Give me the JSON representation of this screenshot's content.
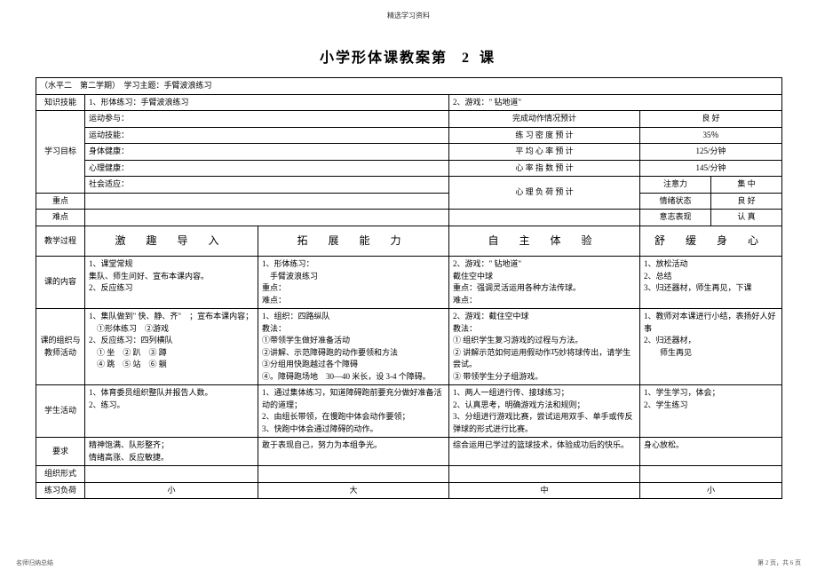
{
  "header_small": "精选学习资料",
  "title_main": "小学形体课教案第",
  "title_num": "2 课",
  "subtitle": "（水平二　第二学期）　学习主题：手臂波浪练习",
  "row_knowledge": {
    "label": "知识技能",
    "c1": "1、形体练习：手臂波浪练习",
    "c2": "2、游戏：\" 钻地道\""
  },
  "goals_label": "学习目标",
  "goals": [
    {
      "l": "运动参与：",
      "m": "完成动作情况预计",
      "r": "良 好"
    },
    {
      "l": "运动技能：",
      "m": "练 习 密 度 预 计",
      "r": "35％"
    },
    {
      "l": "身体健康：",
      "m": "平 均 心 率 预 计",
      "r": "125/分钟"
    },
    {
      "l": "心理健康：",
      "m": "心 率 指 数 预 计",
      "r": "145/分钟"
    },
    {
      "l": "社会适应：",
      "m": "",
      "r": "注意力",
      "r2": "集 中"
    }
  ],
  "zhongdian": {
    "label": "重点",
    "m": "心 理 负 荷 预 计",
    "r": "情绪状态",
    "r2": "良 好"
  },
  "nandian": {
    "label": "难点",
    "r": "意志表现",
    "r2": "认 真"
  },
  "process_label": "教学过程",
  "stages": [
    "激 趣 导 入",
    "拓 展 能 力",
    "自 主 体 验",
    "舒 缓 身 心"
  ],
  "content_label": "课的内容",
  "content": [
    "1、课堂常规\n集队、师生问好、宣布本课内容。\n2、反应练习",
    "1、形体练习：\n　手臂波浪练习\n重点：\n难点：",
    "2、游戏：\" 钻地道\"\n截住空中球\n重点：强调灵活运用各种方法传球。\n难点：",
    "1、放松活动\n2、总结\n3、归还器材，师生再见，下课"
  ],
  "org_label": "课的组织与教师活动",
  "org": [
    "1、集队做到\" 快、静、齐\"　；宣布本课内容；\n　①形体练习　②游戏\n2、反应练习：四列横队\n　① 坐　② 趴　③ 蹲\n　④ 跳　⑤ 站　⑥ 躺",
    "1、组织：四路纵队\n教法：\n①带领学生做好准备活动\n②讲解、示范障碍跑的动作要领和方法\n③分组用快跑越过各个障碍\n④。障碍跑场地　30—40 米长，设 3-4 个障碍。",
    "2、游戏：截住空中球\n教法：\n① 组织学生复习游戏的过程与方法。\n② 讲解示范如何运用假动作巧妙将球传出，请学生尝试。\n③ 带领学生分子组游戏。",
    "1、教师对本课进行小结，表扬好人好事\n2、归还器材，\n　　师生再见"
  ],
  "student_label": "学生活动",
  "student": [
    "1、体育委员组织整队并报告人数。\n2、练习。",
    "1、通过集体练习，知道障碍跑前要充分做好准备活动的道理；\n2、由组长带领，在慢跑中体会动作要领；\n3、快跑中体会通过障碍的动作。",
    "1、两人一组进行传、接球练习；\n2、认真思考，明确游戏方法和规则；\n3、分组进行游戏比赛，尝试运用双手、单手或传反弹球的形式进行比赛。",
    "1、学生学习，体会；\n2、学生练习"
  ],
  "req_label": "要求",
  "req": [
    "精神饱满、队形整齐；\n情绪高涨、反应敏捷。",
    "敢于表现自己，努力为本组争光。",
    "综合运用已学过的篮球技术，体验成功后的快乐。",
    "身心放松。"
  ],
  "orgform_label": "组织形式",
  "load_label": "练习负荷",
  "load": [
    "小",
    "大",
    "中",
    "小"
  ],
  "footer_left": "名师归纳总结",
  "footer_right": "第 2 页，共 6 页"
}
